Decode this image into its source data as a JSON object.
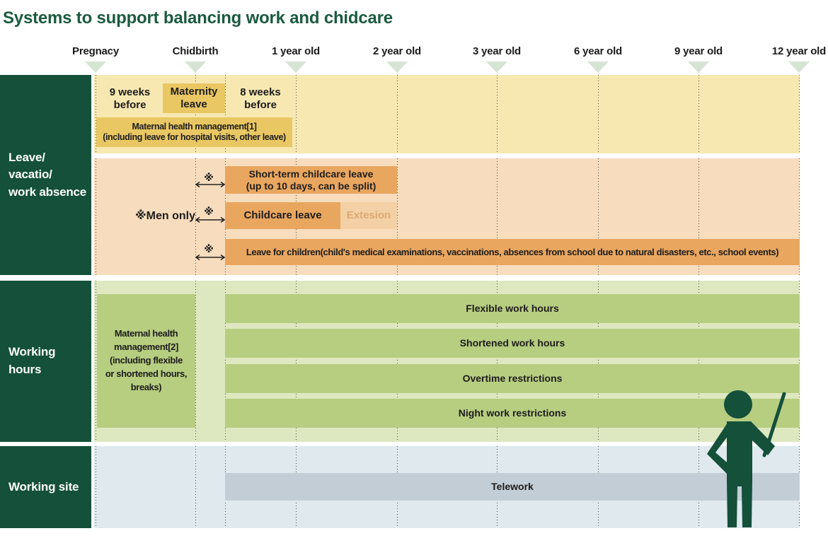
{
  "title": "Systems to support balancing work and chidcare",
  "timeline": {
    "labels": [
      "Pregnacy",
      "Chidbirth",
      "1 year old",
      "2 year old",
      "3 year old",
      "6 year old",
      "9 year old",
      "12 year old"
    ]
  },
  "sidebar": {
    "leave": "Leave/\nvacatio/\nwork absence",
    "working_hours": "Working hours",
    "working_site": "Working site"
  },
  "leave_section": {
    "nine_weeks": "9 weeks\nbefore",
    "maternity_leave": "Maternity\nleave",
    "eight_weeks": "8 weeks\nbefore",
    "maternal_mgmt1": "Maternal health management[1]\n(including leave for hospital visits, other leave)",
    "ref_mark": "※",
    "men_only": "※Men only",
    "short_term": "Short-term childcare leave\n(up to 10 days, can be split)",
    "childcare_leave": "Childcare leave",
    "extension": "Extesion",
    "leave_for_children": "Leave for children(child's medical examinations, vaccinations, absences from school due to natural disasters, etc., school events)"
  },
  "working_hours_section": {
    "maternal_mgmt2": "Maternal health\nmanagement[2]\n(including flexible\nor shortened hours,\nbreaks)",
    "bars": [
      "Flexible work hours",
      "Shortened work hours",
      "Overtime restrictions",
      "Night work restrictions"
    ]
  },
  "working_site_section": {
    "telework": "Telework"
  },
  "colors": {
    "title-green": "#1b5a40",
    "sidebar-green": "#14503a",
    "yellow-bg": "#f7e8b2",
    "yellow-box": "#e9c763",
    "orange-bg": "#f7ddbd",
    "orange-bar": "#e9a65f",
    "orange-ext": "#f3d1a5",
    "ext-text": "#dda873",
    "green-bg": "#dee8c0",
    "green-bar": "#b7cd80",
    "blue-bg": "#dfe9ee",
    "telework-bar": "#c3cdd5",
    "triangle": "#d6e4d4",
    "text": "#1c1c1c",
    "figure-green": "#14503a"
  }
}
